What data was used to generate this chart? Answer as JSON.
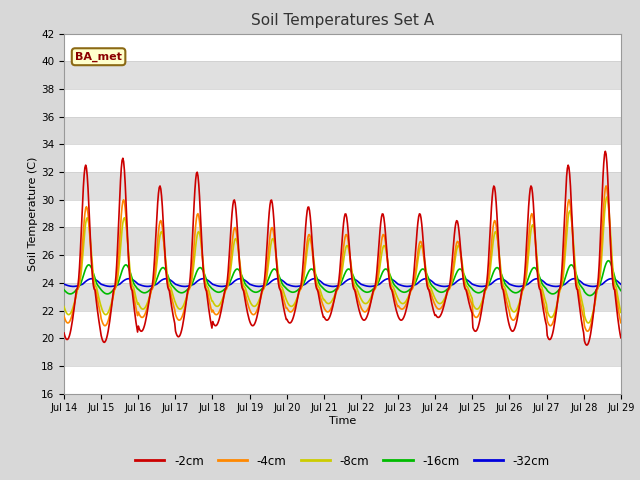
{
  "title": "Soil Temperatures Set A",
  "xlabel": "Time",
  "ylabel": "Soil Temperature (C)",
  "ylim": [
    16,
    42
  ],
  "yticks": [
    16,
    18,
    20,
    22,
    24,
    26,
    28,
    30,
    32,
    34,
    36,
    38,
    40,
    42
  ],
  "legend_label": "BA_met",
  "series_colors": {
    "-2cm": "#cc0000",
    "-4cm": "#ff8800",
    "-8cm": "#cccc00",
    "-16cm": "#00bb00",
    "-32cm": "#0000dd"
  },
  "series_order": [
    "-2cm",
    "-4cm",
    "-8cm",
    "-16cm",
    "-32cm"
  ],
  "fig_bg_color": "#d8d8d8",
  "plot_bg_color": "#f0f0f0",
  "band_colors": [
    "#ffffff",
    "#e0e0e0"
  ],
  "grid_line_color": "#cccccc",
  "n_days": 15,
  "start_day": 14,
  "points_per_day": 48,
  "figsize": [
    6.4,
    4.8
  ],
  "dpi": 100
}
